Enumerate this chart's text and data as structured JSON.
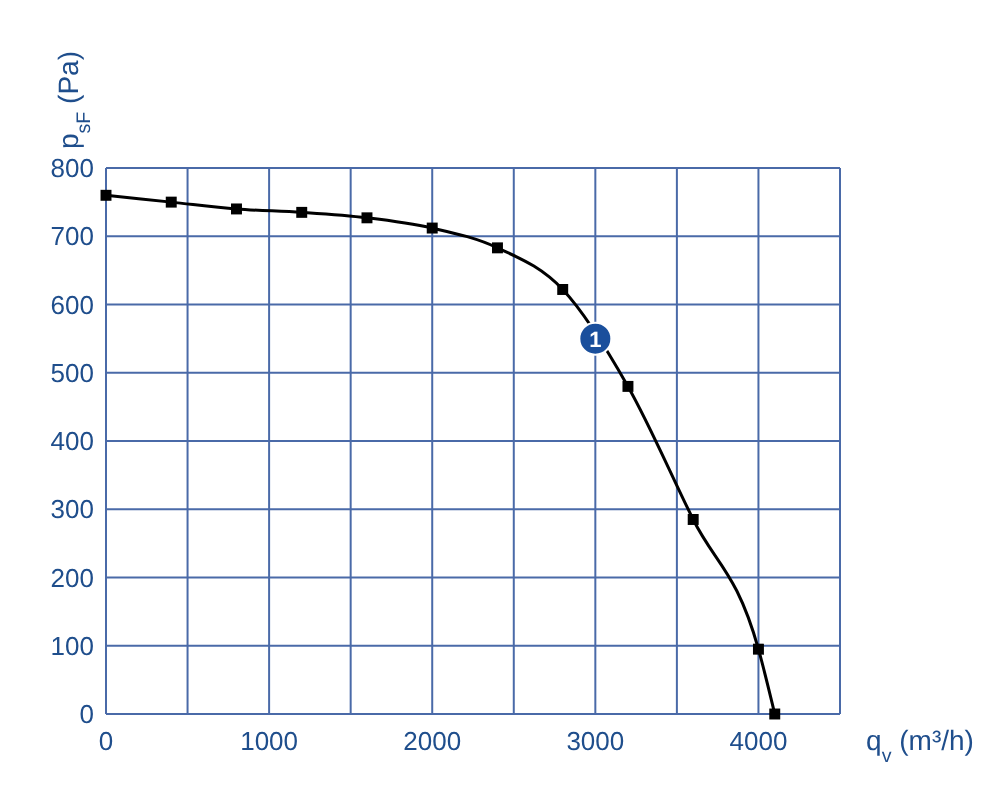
{
  "chart_data": {
    "type": "line",
    "xlabel": "q$_{v}$ (m³/h)",
    "ylabel": "p$_{sF}$ (Pa)",
    "x": [
      0,
      400,
      800,
      1200,
      1600,
      2000,
      2400,
      2800,
      3200,
      3600,
      4000,
      4100
    ],
    "series": [
      {
        "color": "#000000",
        "values": [
          760,
          750,
          740,
          735,
          727,
          712,
          683,
          622,
          480,
          285,
          95,
          0
        ]
      }
    ],
    "xlim": [
      0,
      4500
    ],
    "ylim": [
      0,
      800
    ],
    "xticks": [
      0,
      {
        "value": 500,
        "label": null
      },
      1000,
      {
        "value": 1500,
        "label": null
      },
      2000,
      {
        "value": 2500,
        "label": null
      },
      3000,
      {
        "value": 3500,
        "label": null
      },
      4000,
      {
        "value": 4500,
        "label": null
      }
    ],
    "yticks": [
      0,
      100,
      200,
      300,
      400,
      500,
      600,
      700,
      800
    ],
    "grid": true,
    "marker": "square",
    "line_style": "solid",
    "annotations": [
      {
        "text": "1",
        "x": 3000,
        "y": 550
      }
    ]
  }
}
